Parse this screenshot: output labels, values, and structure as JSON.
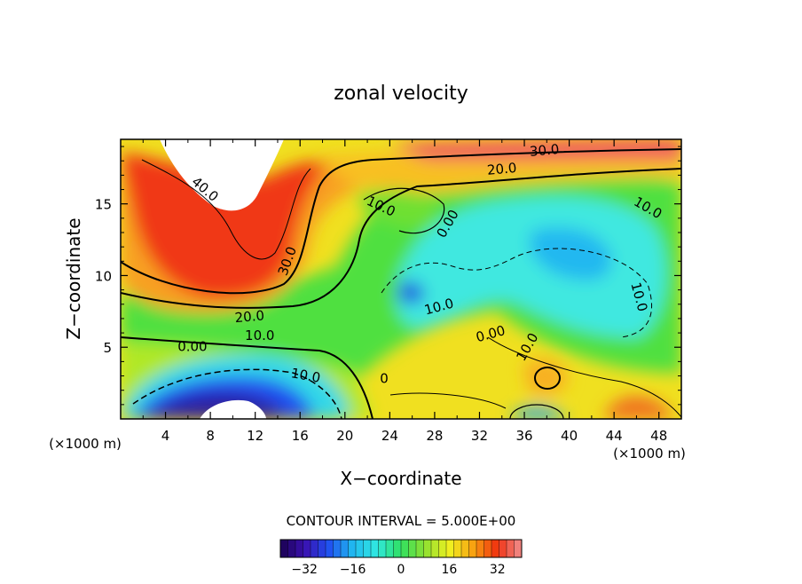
{
  "chart_data": {
    "type": "heatmap",
    "title": "zonal velocity",
    "xlabel": "X−coordinate",
    "ylabel": "Z−coordinate",
    "x_unit": "(×1000 m)",
    "z_unit": "(×1000 m)",
    "xlim": [
      0,
      50
    ],
    "ylim": [
      0,
      19.5
    ],
    "x_ticks": [
      4,
      8,
      12,
      16,
      20,
      24,
      28,
      32,
      36,
      40,
      44,
      48
    ],
    "y_ticks": [
      5,
      10,
      15
    ],
    "contour_interval_text": "CONTOUR INTERVAL = 5.000E+00",
    "contour_labels": [
      {
        "text": "30.0",
        "x": 37.8,
        "y": 18.7,
        "rot": -5
      },
      {
        "text": "20.0",
        "x": 34.0,
        "y": 17.4,
        "rot": -5
      },
      {
        "text": "40.0",
        "x": 7.5,
        "y": 16.0,
        "rot": 40
      },
      {
        "text": "10.0",
        "x": 23.2,
        "y": 14.8,
        "rot": 25
      },
      {
        "text": "0.00",
        "x": 29.2,
        "y": 13.6,
        "rot": -60
      },
      {
        "text": "30.0",
        "x": 14.9,
        "y": 11.0,
        "rot": -70
      },
      {
        "text": "10.0",
        "x": 47.0,
        "y": 14.7,
        "rot": 30
      },
      {
        "text": "10.0",
        "x": 28.4,
        "y": 7.8,
        "rot": -15
      },
      {
        "text": "10.0",
        "x": 46.2,
        "y": 8.5,
        "rot": 75
      },
      {
        "text": "20.0",
        "x": 11.5,
        "y": 7.1,
        "rot": -5
      },
      {
        "text": "10.0",
        "x": 12.4,
        "y": 5.8,
        "rot": 0
      },
      {
        "text": "0.00",
        "x": 6.4,
        "y": 5.0,
        "rot": 0
      },
      {
        "text": "0.00",
        "x": 33.0,
        "y": 5.9,
        "rot": -15
      },
      {
        "text": "10.0",
        "x": 36.3,
        "y": 5.0,
        "rot": -60
      },
      {
        "text": "10.0",
        "x": 16.5,
        "y": 3.0,
        "rot": 10
      },
      {
        "text": "0",
        "x": 23.5,
        "y": 2.8,
        "rot": 0
      }
    ],
    "colorbar": {
      "range": [
        -40,
        40
      ],
      "ticks": [
        -32,
        -16,
        0,
        16,
        32
      ],
      "colors": [
        "#1a0050",
        "#3a10b0",
        "#2050f0",
        "#20b8f0",
        "#30e8e0",
        "#30e060",
        "#90e030",
        "#f0f020",
        "#f8a010",
        "#f03010",
        "#f09090"
      ]
    }
  }
}
